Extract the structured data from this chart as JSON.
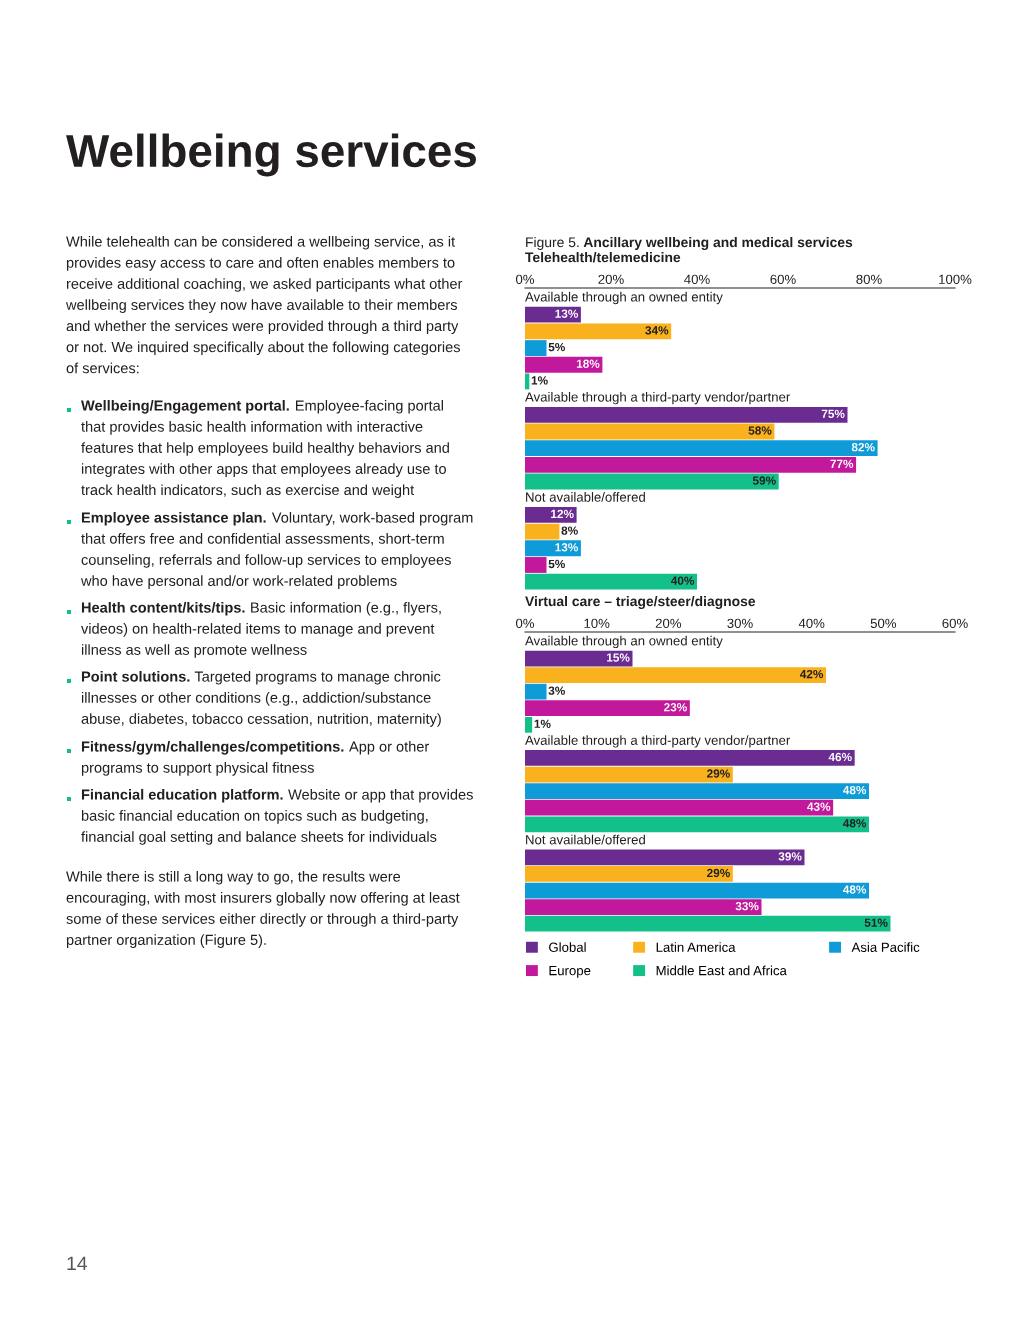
{
  "chart_data": [
    {
      "type": "bar",
      "orientation": "horizontal",
      "title": "Telehealth/telemedicine",
      "categories": [
        "Available through an owned entity",
        "Available through a third-party vendor/partner",
        "Not available/offered"
      ],
      "xlim": [
        0,
        100
      ],
      "xticks": [
        {
          "value": 0,
          "label": "0%"
        },
        {
          "value": 20,
          "label": "20%"
        },
        {
          "value": 40,
          "label": "40%"
        },
        {
          "value": 60,
          "label": "60%"
        },
        {
          "value": 80,
          "label": "80%"
        },
        {
          "value": 100,
          "label": "100%"
        }
      ],
      "grid": false,
      "legend": false,
      "series": [
        {
          "color": "#6a2c91",
          "values": [
            13,
            75,
            12
          ],
          "value_labels": [
            "13%",
            "75%",
            "12%"
          ]
        },
        {
          "color": "#f9b21d",
          "values": [
            34,
            58,
            8
          ],
          "value_labels": [
            "34%",
            "58%",
            "8%"
          ]
        },
        {
          "color": "#0f9bd7",
          "values": [
            5,
            82,
            13
          ],
          "value_labels": [
            "5%",
            "82%",
            "13%"
          ]
        },
        {
          "color": "#c2189b",
          "values": [
            18,
            77,
            5
          ],
          "value_labels": [
            "18%",
            "77%",
            "5%"
          ]
        },
        {
          "color": "#13c08a",
          "values": [
            1,
            59,
            40
          ],
          "value_labels": [
            "1%",
            "59%",
            "40%"
          ]
        }
      ],
      "annotations": [
        "Wellbeing services",
        "While telehealth can be considered a wellbeing service, as it\nprovides easy access to care and often enables members to\nreceive additional coaching, we asked participants what other\nwellbeing services they now have available to their members\nand whether the services were provided through a third party\nor not. We inquired specifically about the following categories\nof services:",
        "Wellbeing/Engagement portal. Employee-facing portal\nthat provides basic health information with interactive\nfeatures that help employees build healthy behaviors and\nintegrates with other apps that employees already use to\ntrack health indicators, such as exercise and weight",
        "Employee assistance plan. Voluntary, work-based program\nthat offers free and confidential assessments, short-term\ncounseling, referrals and follow-up services to employees\nwho have personal and/or work-related problems",
        "Health content/kits/tips. Basic information (e.g., flyers,\nvideos) on health-related items to manage and prevent\nillness as well as promote wellness",
        "Point solutions. Targeted programs to manage chronic\nillnesses or other conditions (e.g., addiction/substance\nabuse, diabetes, tobacco cessation, nutrition, maternity)",
        "Fitness/gym/challenges/competitions. App or other\nprograms to support physical fitness",
        "Financial education platform. Website or app that provides\nbasic financial education on topics such as budgeting,\nfinancial goal setting and balance sheets for individuals",
        "While there is still a long way to go, the results were\nencouraging, with most insurers globally now offering at least\nsome of these services either directly or through a third-party\npartner organization (Figure 5).",
        "Figure 5. Ancillary wellbeing and medical services",
        "14"
      ]
    },
    {
      "type": "bar",
      "orientation": "horizontal",
      "title": "Virtual care – triage/steer/diagnose",
      "categories": [
        "Available through an owned entity",
        "Available through a third-party vendor/partner",
        "Not available/offered"
      ],
      "xlim": [
        0,
        60
      ],
      "xticks": [
        {
          "value": 0,
          "label": "0%"
        },
        {
          "value": 10,
          "label": "10%"
        },
        {
          "value": 20,
          "label": "20%"
        },
        {
          "value": 30,
          "label": "30%"
        },
        {
          "value": 40,
          "label": "40%"
        },
        {
          "value": 50,
          "label": "50%"
        },
        {
          "value": 60,
          "label": "60%"
        }
      ],
      "grid": false,
      "legend": "bottom",
      "series": [
        {
          "name": "Global",
          "color": "#6a2c91",
          "values": [
            15,
            46,
            39
          ],
          "value_labels": [
            "15%",
            "46%",
            "39%"
          ]
        },
        {
          "name": "Latin America",
          "color": "#f9b21d",
          "values": [
            42,
            29,
            29
          ],
          "value_labels": [
            "42%",
            "29%",
            "29%"
          ]
        },
        {
          "name": "Asia Pacific",
          "color": "#0f9bd7",
          "values": [
            3,
            48,
            48
          ],
          "value_labels": [
            "3%",
            "48%",
            "48%"
          ]
        },
        {
          "name": "Europe",
          "color": "#c2189b",
          "values": [
            23,
            43,
            33
          ],
          "value_labels": [
            "23%",
            "43%",
            "33%"
          ]
        },
        {
          "name": "Middle East and Africa",
          "color": "#13c08a",
          "values": [
            1,
            48,
            51
          ],
          "value_labels": [
            "1%",
            "48%",
            "51%"
          ]
        }
      ]
    }
  ]
}
